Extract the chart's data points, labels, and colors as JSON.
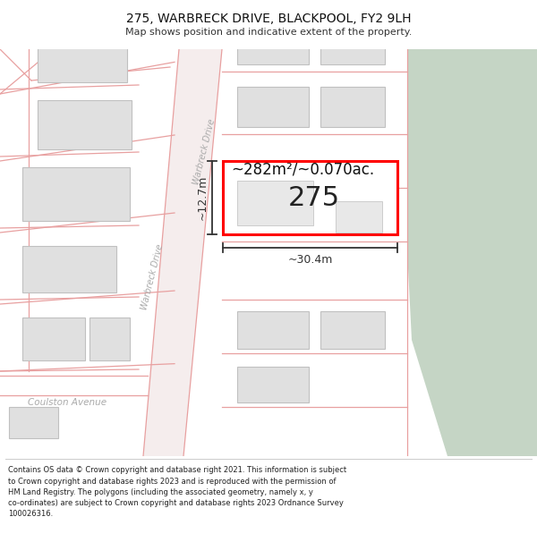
{
  "title": "275, WARBRECK DRIVE, BLACKPOOL, FY2 9LH",
  "subtitle": "Map shows position and indicative extent of the property.",
  "footer_lines": [
    "Contains OS data © Crown copyright and database right 2021. This information is subject",
    "to Crown copyright and database rights 2023 and is reproduced with the permission of",
    "HM Land Registry. The polygons (including the associated geometry, namely x, y",
    "co-ordinates) are subject to Crown copyright and database rights 2023 Ordnance Survey",
    "100026316."
  ],
  "map_bg": "#ffffff",
  "road_line_color": "#e8a0a0",
  "building_fill": "#e0e0e0",
  "building_outline": "#c0c0c0",
  "highlight_fill": "#ffffff",
  "highlight_outline": "#ff0000",
  "green_fill": "#c5d5c5",
  "arrow_color": "#333333",
  "text_dark": "#222222",
  "street_label_color": "#aaaaaa",
  "area_text": "~282m²/~0.070ac.",
  "property_label": "275",
  "width_label": "~30.4m",
  "height_label": "~12.7m",
  "street_warbreck": "Warbreck Drive",
  "street_coulston": "Coulston Avenue"
}
